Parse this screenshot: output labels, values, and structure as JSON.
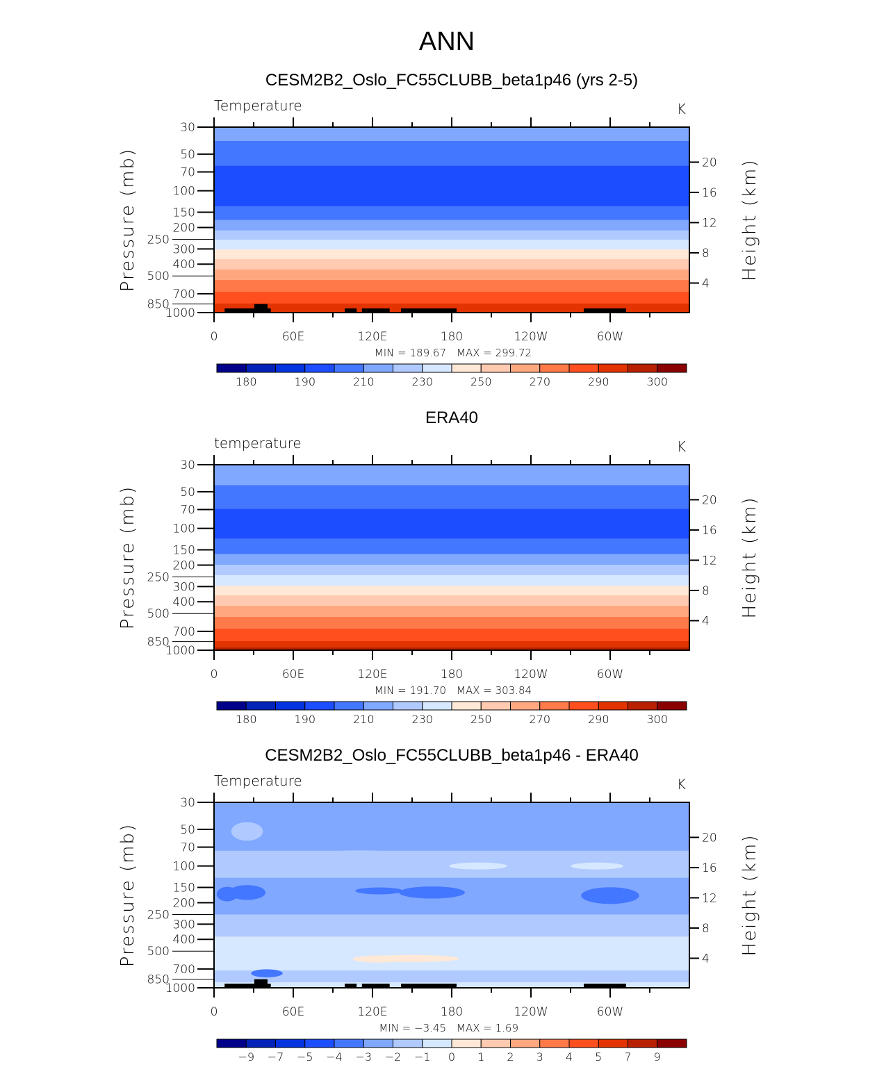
{
  "page_title": "ANN",
  "palette": [
    "#00008a",
    "#0222b8",
    "#0433e0",
    "#1c4dff",
    "#4477ff",
    "#80a8ff",
    "#b0caff",
    "#d6e8ff",
    "#ffe8d6",
    "#ffcab0",
    "#ffa880",
    "#ff7a48",
    "#ff4f1e",
    "#e33300",
    "#b82000",
    "#8b0000"
  ],
  "chart_data": [
    {
      "type": "heatmap",
      "title": "CESM2B2_Oslo_FC55CLUBB_beta1p46 (yrs 2-5)",
      "left_string": "Temperature",
      "right_string": "K",
      "ylabel": "Pressure (mb)",
      "ylabel_right": "Height (km)",
      "xlim": [
        0,
        360
      ],
      "ylim": [
        1000,
        30
      ],
      "x_ticks": [
        {
          "v": 0,
          "l": "0"
        },
        {
          "v": 60,
          "l": "60E"
        },
        {
          "v": 120,
          "l": "120E"
        },
        {
          "v": 180,
          "l": "180"
        },
        {
          "v": 240,
          "l": "120W"
        },
        {
          "v": 300,
          "l": "60W"
        }
      ],
      "y_ticks": [
        30,
        50,
        70,
        100,
        150,
        200,
        250,
        300,
        400,
        500,
        700,
        850,
        1000
      ],
      "height_ticks": [
        20,
        16,
        12,
        8,
        4
      ],
      "min_label": "MIN =  189.67",
      "max_label": "MAX =  299.72",
      "levels": [
        "180",
        "190",
        "210",
        "230",
        "250",
        "270",
        "290",
        "300"
      ],
      "bands": [
        [
          30,
          39,
          5
        ],
        [
          39,
          62,
          4
        ],
        [
          62,
          134,
          3
        ],
        [
          134,
          174,
          4
        ],
        [
          174,
          212,
          5
        ],
        [
          212,
          252,
          6
        ],
        [
          252,
          304,
          7
        ],
        [
          304,
          364,
          8
        ],
        [
          364,
          443,
          9
        ],
        [
          443,
          539,
          10
        ],
        [
          539,
          674,
          11
        ],
        [
          674,
          843,
          12
        ],
        [
          843,
          1000,
          13
        ]
      ],
      "blobs": [],
      "topography": true
    },
    {
      "type": "heatmap",
      "title": "ERA40",
      "left_string": "temperature",
      "right_string": "K",
      "ylabel": "Pressure (mb)",
      "ylabel_right": "Height (km)",
      "xlim": [
        0,
        360
      ],
      "ylim": [
        1000,
        30
      ],
      "x_ticks": [
        {
          "v": 0,
          "l": "0"
        },
        {
          "v": 60,
          "l": "60E"
        },
        {
          "v": 120,
          "l": "120E"
        },
        {
          "v": 180,
          "l": "180"
        },
        {
          "v": 240,
          "l": "120W"
        },
        {
          "v": 300,
          "l": "60W"
        }
      ],
      "y_ticks": [
        30,
        50,
        70,
        100,
        150,
        200,
        250,
        300,
        400,
        500,
        700,
        850,
        1000
      ],
      "height_ticks": [
        20,
        16,
        12,
        8,
        4
      ],
      "min_label": "MIN =  191.70",
      "max_label": "MAX =  303.84",
      "levels": [
        "180",
        "190",
        "210",
        "230",
        "250",
        "270",
        "290",
        "300"
      ],
      "bands": [
        [
          30,
          44,
          5
        ],
        [
          44,
          69,
          4
        ],
        [
          69,
          122,
          3
        ],
        [
          122,
          163,
          4
        ],
        [
          163,
          199,
          5
        ],
        [
          199,
          242,
          6
        ],
        [
          242,
          295,
          7
        ],
        [
          295,
          354,
          8
        ],
        [
          354,
          432,
          9
        ],
        [
          432,
          532,
          10
        ],
        [
          532,
          665,
          11
        ],
        [
          665,
          843,
          12
        ],
        [
          843,
          948,
          13
        ],
        [
          948,
          1000,
          14
        ]
      ],
      "blobs": [],
      "topography": false
    },
    {
      "type": "heatmap",
      "title": "CESM2B2_Oslo_FC55CLUBB_beta1p46 - ERA40",
      "left_string": "Temperature",
      "right_string": "K",
      "ylabel": "Pressure (mb)",
      "ylabel_right": "Height (km)",
      "xlim": [
        0,
        360
      ],
      "ylim": [
        1000,
        30
      ],
      "x_ticks": [
        {
          "v": 0,
          "l": "0"
        },
        {
          "v": 60,
          "l": "60E"
        },
        {
          "v": 120,
          "l": "120E"
        },
        {
          "v": 180,
          "l": "180"
        },
        {
          "v": 240,
          "l": "120W"
        },
        {
          "v": 300,
          "l": "60W"
        }
      ],
      "y_ticks": [
        30,
        50,
        70,
        100,
        150,
        200,
        250,
        300,
        400,
        500,
        700,
        850,
        1000
      ],
      "height_ticks": [
        20,
        16,
        12,
        8,
        4
      ],
      "min_label": "MIN =   −3.45",
      "max_label": "MAX =     1.69",
      "levels": [
        "−9",
        "−7",
        "−5",
        "−4",
        "−3",
        "−2",
        "−1",
        "0",
        "1",
        "2",
        "3",
        "4",
        "5",
        "7",
        "9"
      ],
      "bands": [
        [
          30,
          1000,
          5
        ],
        [
          75,
          125,
          6
        ],
        [
          250,
          1000,
          6
        ],
        [
          380,
          720,
          7
        ],
        [
          900,
          1000,
          7
        ]
      ],
      "blobs": [
        [
          25,
          52,
          12,
          10,
          6
        ],
        [
          110,
          85,
          40,
          12,
          6
        ],
        [
          212,
          95,
          38,
          12,
          6
        ],
        [
          200,
          100,
          22,
          6,
          7
        ],
        [
          290,
          100,
          20,
          6,
          7
        ],
        [
          10,
          170,
          8,
          25,
          4
        ],
        [
          25,
          165,
          14,
          25,
          4
        ],
        [
          125,
          160,
          18,
          10,
          4
        ],
        [
          165,
          165,
          25,
          20,
          4
        ],
        [
          300,
          175,
          22,
          30,
          4
        ],
        [
          150,
          575,
          36,
          40,
          8
        ],
        [
          125,
          580,
          20,
          40,
          8
        ],
        [
          40,
          760,
          12,
          60,
          4
        ]
      ],
      "topography": true
    }
  ]
}
